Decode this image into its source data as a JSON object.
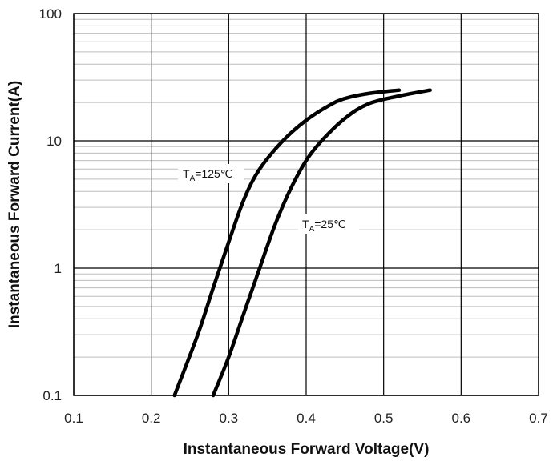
{
  "chart_data": {
    "type": "line",
    "xlabel": "Instantaneous Forward Voltage(V)",
    "ylabel": "Instantaneous Forward Current(A)",
    "xlim": [
      0.1,
      0.7
    ],
    "ylim": [
      0.1,
      100
    ],
    "y_scale": "log",
    "grid": true,
    "x_ticks": [
      "0.1",
      "0.2",
      "0.3",
      "0.4",
      "0.5",
      "0.6",
      "0.7"
    ],
    "y_ticks": [
      "0.1",
      "1",
      "10",
      "100"
    ],
    "series": [
      {
        "label_main": "T",
        "label_sub": "A",
        "label_rest": "=125℃",
        "color": "#000000",
        "x": [
          0.23,
          0.26,
          0.28,
          0.3,
          0.32,
          0.34,
          0.37,
          0.4,
          0.43,
          0.45,
          0.48,
          0.52
        ],
        "y": [
          0.1,
          0.3,
          0.7,
          1.6,
          3.5,
          6.0,
          10.0,
          14.5,
          19.0,
          21.5,
          23.5,
          25.0
        ]
      },
      {
        "label_main": "T",
        "label_sub": "A",
        "label_rest": "=25℃",
        "color": "#000000",
        "x": [
          0.28,
          0.3,
          0.32,
          0.34,
          0.36,
          0.38,
          0.4,
          0.42,
          0.45,
          0.48,
          0.52,
          0.56
        ],
        "y": [
          0.1,
          0.2,
          0.45,
          1.0,
          2.2,
          4.2,
          7.0,
          10.0,
          15.0,
          19.5,
          22.5,
          25.0
        ]
      }
    ]
  }
}
